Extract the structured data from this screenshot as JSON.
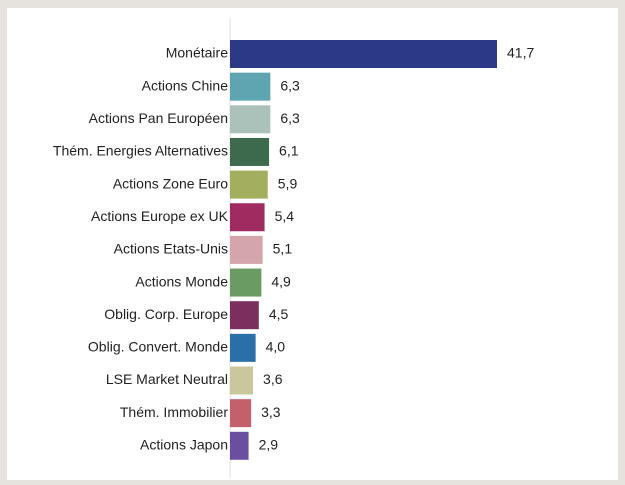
{
  "chart_data": {
    "type": "hbar",
    "categories": [
      "Monétaire",
      "Actions Chine",
      "Actions Pan Européen",
      "Thém. Energies Alternatives",
      "Actions Zone Euro",
      "Actions Europe ex UK",
      "Actions Etats-Unis",
      "Actions Monde",
      "Oblig. Corp. Europe",
      "Oblig. Convert. Monde",
      "LSE Market Neutral",
      "Thém. Immobilier",
      "Actions Japon"
    ],
    "values": [
      41.7,
      6.3,
      6.3,
      6.1,
      5.9,
      5.4,
      5.1,
      4.9,
      4.5,
      4.0,
      3.6,
      3.3,
      2.9
    ],
    "value_labels": [
      "41,7",
      "6,3",
      "6,3",
      "6,1",
      "5,9",
      "5,4",
      "5,1",
      "4,9",
      "4,5",
      "4,0",
      "3,6",
      "3,3",
      "2,9"
    ],
    "colors": [
      "#2c3a85",
      "#5fa4b1",
      "#aac2b9",
      "#3d6a4d",
      "#a3ae5f",
      "#a02b61",
      "#d4a6ac",
      "#6a9b63",
      "#7a2f5e",
      "#2a6fa8",
      "#c9c79b",
      "#c4606c",
      "#6a4fa1"
    ]
  }
}
